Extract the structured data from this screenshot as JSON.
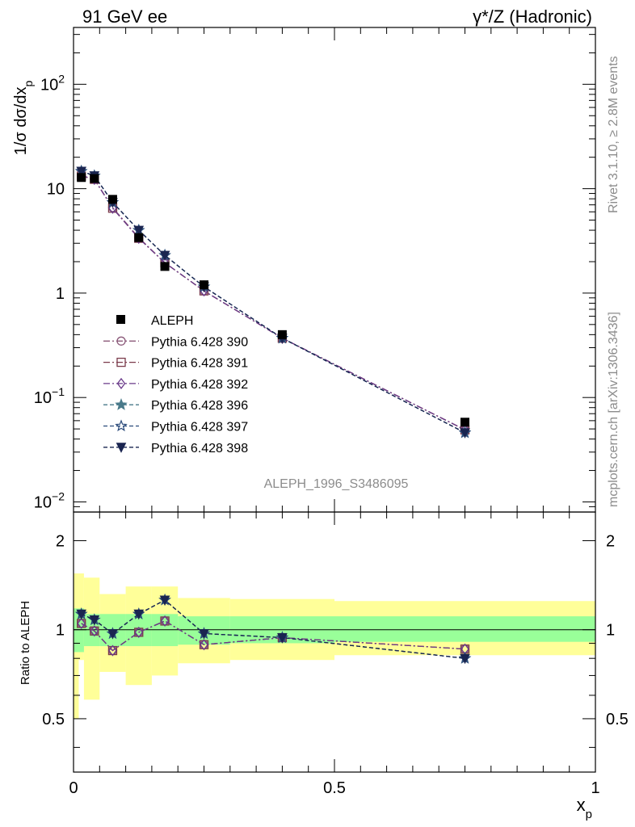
{
  "header": {
    "left_title": "91 GeV ee",
    "right_title": "γ*/Z (Hadronic)"
  },
  "side_labels": {
    "top": "Rivet 3.1.10, ≥ 2.8M events",
    "bottom": "mcplots.cern.ch [arXiv:1306.3436]"
  },
  "watermark": "ALEPH_1996_S3486095",
  "colors": {
    "band_inner": "#99ff99",
    "band_outer": "#ffff99",
    "data": "#000000"
  },
  "chart_data": [
    {
      "type": "scatter",
      "panel": "main",
      "ylabel": "1/σ dσ/dx_p",
      "yscale": "log",
      "ylim": [
        0.008,
        350
      ],
      "xlim": [
        0,
        1
      ],
      "ytick_labels": [
        "10^-2",
        "10^-1",
        "1",
        "10",
        "10^2"
      ],
      "legend_placement": "center-left",
      "data": {
        "name": "ALEPH",
        "x": [
          0.015,
          0.04,
          0.075,
          0.125,
          0.175,
          0.25,
          0.4,
          0.75
        ],
        "y": [
          12.8,
          12.5,
          7.9,
          3.4,
          1.8,
          1.2,
          0.4,
          0.058
        ]
      },
      "series": [
        {
          "name": "Pythia 6.428 390",
          "marker": "circle-open",
          "color": "#8b5a7a",
          "dash": "8,3,2,3",
          "x": [
            0.015,
            0.04,
            0.075,
            0.125,
            0.175,
            0.25,
            0.4,
            0.75
          ],
          "y": [
            13.3,
            12.3,
            6.6,
            3.4,
            1.95,
            1.05,
            0.37,
            0.049
          ]
        },
        {
          "name": "Pythia 6.428 391",
          "marker": "square-open",
          "color": "#7a3a4a",
          "dash": "8,3,2,3",
          "x": [
            0.015,
            0.04,
            0.075,
            0.125,
            0.175,
            0.25,
            0.4,
            0.75
          ],
          "y": [
            13.2,
            12.3,
            6.5,
            3.35,
            1.95,
            1.05,
            0.37,
            0.049
          ]
        },
        {
          "name": "Pythia 6.428 392",
          "marker": "diamond-open",
          "color": "#6a3a8a",
          "dash": "8,3,2,3",
          "x": [
            0.015,
            0.04,
            0.075,
            0.125,
            0.175,
            0.25,
            0.4,
            0.75
          ],
          "y": [
            13.4,
            12.3,
            6.5,
            3.35,
            1.95,
            1.05,
            0.37,
            0.049
          ]
        },
        {
          "name": "Pythia 6.428 396",
          "marker": "star-filled",
          "color": "#4a7a8a",
          "dash": "5,3",
          "x": [
            0.015,
            0.04,
            0.075,
            0.125,
            0.175,
            0.25,
            0.4,
            0.75
          ],
          "y": [
            14.7,
            13.3,
            7.4,
            4.0,
            2.3,
            1.15,
            0.37,
            0.046
          ]
        },
        {
          "name": "Pythia 6.428 397",
          "marker": "star-open",
          "color": "#2a4a7a",
          "dash": "5,3",
          "x": [
            0.015,
            0.04,
            0.075,
            0.125,
            0.175,
            0.25,
            0.4,
            0.75
          ],
          "y": [
            14.7,
            13.3,
            7.4,
            4.0,
            2.3,
            1.15,
            0.37,
            0.046
          ]
        },
        {
          "name": "Pythia 6.428 398",
          "marker": "triangle-down-filled",
          "color": "#1a2550",
          "dash": "5,3",
          "x": [
            0.015,
            0.04,
            0.075,
            0.125,
            0.175,
            0.25,
            0.4,
            0.75
          ],
          "y": [
            14.7,
            13.3,
            7.4,
            4.0,
            2.3,
            1.15,
            0.37,
            0.046
          ]
        }
      ]
    },
    {
      "type": "line",
      "panel": "ratio",
      "ylabel": "Ratio to ALEPH",
      "xlabel": "x_p",
      "ylim": [
        0.33,
        2.5
      ],
      "yscale": "log",
      "xlim": [
        0,
        1
      ],
      "ytick_labels": [
        "0.5",
        "1",
        "2"
      ],
      "xtick_labels": [
        "0",
        "0.5",
        "1"
      ],
      "bands": {
        "edges": [
          0,
          0.01,
          0.02,
          0.05,
          0.1,
          0.15,
          0.2,
          0.3,
          0.5,
          1.0
        ],
        "inner_low": [
          0.84,
          0.84,
          0.88,
          0.88,
          0.88,
          0.88,
          0.89,
          0.9,
          0.91
        ],
        "inner_high": [
          1.18,
          1.18,
          1.13,
          1.13,
          1.13,
          1.13,
          1.11,
          1.11,
          1.11
        ],
        "outer_low": [
          0.5,
          0.79,
          0.58,
          0.72,
          0.65,
          0.7,
          0.77,
          0.79,
          0.82
        ],
        "outer_high": [
          1.55,
          1.55,
          1.5,
          1.32,
          1.4,
          1.4,
          1.28,
          1.27,
          1.25
        ]
      },
      "series": [
        {
          "name": "Pythia 6.428 390",
          "x": [
            0.015,
            0.04,
            0.075,
            0.125,
            0.175,
            0.25,
            0.4,
            0.75
          ],
          "y": [
            1.05,
            0.99,
            0.85,
            0.98,
            1.07,
            0.89,
            0.94,
            0.86
          ]
        },
        {
          "name": "Pythia 6.428 391",
          "x": [
            0.015,
            0.04,
            0.075,
            0.125,
            0.175,
            0.25,
            0.4,
            0.75
          ],
          "y": [
            1.05,
            0.99,
            0.85,
            0.98,
            1.07,
            0.89,
            0.94,
            0.86
          ]
        },
        {
          "name": "Pythia 6.428 392",
          "x": [
            0.015,
            0.04,
            0.075,
            0.125,
            0.175,
            0.25,
            0.4,
            0.75
          ],
          "y": [
            1.05,
            0.99,
            0.85,
            0.98,
            1.07,
            0.89,
            0.94,
            0.86
          ]
        },
        {
          "name": "Pythia 6.428 396",
          "x": [
            0.015,
            0.04,
            0.075,
            0.125,
            0.175,
            0.25,
            0.4,
            0.75
          ],
          "y": [
            1.13,
            1.08,
            0.97,
            1.13,
            1.26,
            0.97,
            0.94,
            0.8
          ]
        },
        {
          "name": "Pythia 6.428 397",
          "x": [
            0.015,
            0.04,
            0.075,
            0.125,
            0.175,
            0.25,
            0.4,
            0.75
          ],
          "y": [
            1.13,
            1.08,
            0.97,
            1.13,
            1.26,
            0.97,
            0.94,
            0.8
          ]
        },
        {
          "name": "Pythia 6.428 398",
          "x": [
            0.015,
            0.04,
            0.075,
            0.125,
            0.175,
            0.25,
            0.4,
            0.75
          ],
          "y": [
            1.13,
            1.08,
            0.97,
            1.13,
            1.26,
            0.97,
            0.94,
            0.8
          ]
        }
      ]
    }
  ]
}
